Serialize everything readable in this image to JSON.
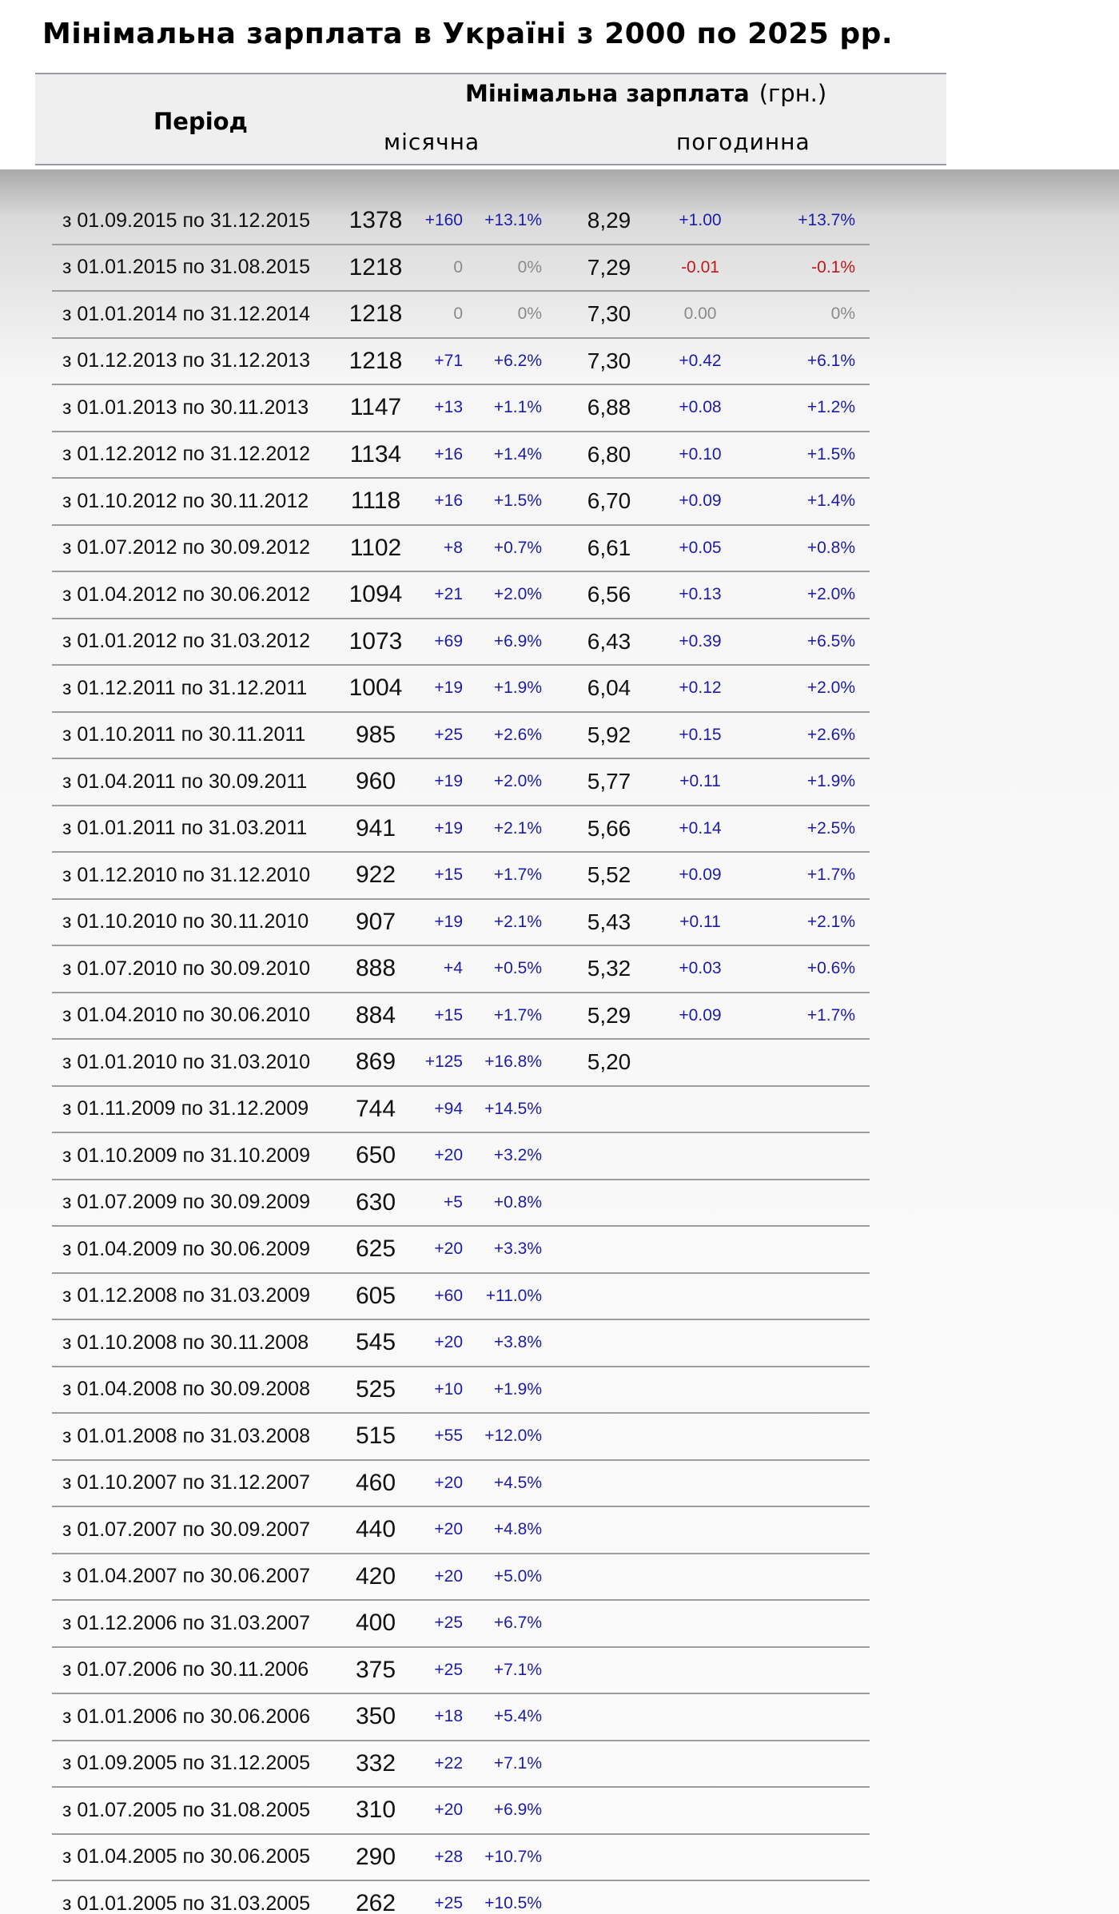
{
  "page": {
    "title": "Мінімальна зарплата в Україні з 2000 по 2025 рр."
  },
  "table": {
    "header": {
      "period": "Період",
      "group": "Мінімальна зарплата",
      "unit": "(грн.)",
      "monthly": "місячна",
      "hourly": "погодинна"
    },
    "rows": [
      {
        "period": "з 01.09.2015 по 31.12.2015",
        "monthly": "1378",
        "m_abs": "+160",
        "m_pct": "+13.1%",
        "hourly": "8,29",
        "h_abs": "+1.00",
        "h_pct": "+13.7%"
      },
      {
        "period": "з 01.01.2015 по 31.08.2015",
        "monthly": "1218",
        "m_abs": "0",
        "m_pct": "0%",
        "hourly": "7,29",
        "h_abs": "-0.01",
        "h_pct": "-0.1%"
      },
      {
        "period": "з 01.01.2014 по 31.12.2014",
        "monthly": "1218",
        "m_abs": "0",
        "m_pct": "0%",
        "hourly": "7,30",
        "h_abs": "0.00",
        "h_pct": "0%"
      },
      {
        "period": "з 01.12.2013 по 31.12.2013",
        "monthly": "1218",
        "m_abs": "+71",
        "m_pct": "+6.2%",
        "hourly": "7,30",
        "h_abs": "+0.42",
        "h_pct": "+6.1%"
      },
      {
        "period": "з 01.01.2013 по 30.11.2013",
        "monthly": "1147",
        "m_abs": "+13",
        "m_pct": "+1.1%",
        "hourly": "6,88",
        "h_abs": "+0.08",
        "h_pct": "+1.2%"
      },
      {
        "period": "з 01.12.2012 по 31.12.2012",
        "monthly": "1134",
        "m_abs": "+16",
        "m_pct": "+1.4%",
        "hourly": "6,80",
        "h_abs": "+0.10",
        "h_pct": "+1.5%"
      },
      {
        "period": "з 01.10.2012 по 30.11.2012",
        "monthly": "1118",
        "m_abs": "+16",
        "m_pct": "+1.5%",
        "hourly": "6,70",
        "h_abs": "+0.09",
        "h_pct": "+1.4%"
      },
      {
        "period": "з 01.07.2012 по 30.09.2012",
        "monthly": "1102",
        "m_abs": "+8",
        "m_pct": "+0.7%",
        "hourly": "6,61",
        "h_abs": "+0.05",
        "h_pct": "+0.8%"
      },
      {
        "period": "з 01.04.2012 по 30.06.2012",
        "monthly": "1094",
        "m_abs": "+21",
        "m_pct": "+2.0%",
        "hourly": "6,56",
        "h_abs": "+0.13",
        "h_pct": "+2.0%"
      },
      {
        "period": "з 01.01.2012 по 31.03.2012",
        "monthly": "1073",
        "m_abs": "+69",
        "m_pct": "+6.9%",
        "hourly": "6,43",
        "h_abs": "+0.39",
        "h_pct": "+6.5%"
      },
      {
        "period": "з 01.12.2011 по 31.12.2011",
        "monthly": "1004",
        "m_abs": "+19",
        "m_pct": "+1.9%",
        "hourly": "6,04",
        "h_abs": "+0.12",
        "h_pct": "+2.0%"
      },
      {
        "period": "з 01.10.2011 по 30.11.2011",
        "monthly": "985",
        "m_abs": "+25",
        "m_pct": "+2.6%",
        "hourly": "5,92",
        "h_abs": "+0.15",
        "h_pct": "+2.6%"
      },
      {
        "period": "з 01.04.2011 по 30.09.2011",
        "monthly": "960",
        "m_abs": "+19",
        "m_pct": "+2.0%",
        "hourly": "5,77",
        "h_abs": "+0.11",
        "h_pct": "+1.9%"
      },
      {
        "period": "з 01.01.2011 по 31.03.2011",
        "monthly": "941",
        "m_abs": "+19",
        "m_pct": "+2.1%",
        "hourly": "5,66",
        "h_abs": "+0.14",
        "h_pct": "+2.5%"
      },
      {
        "period": "з 01.12.2010 по 31.12.2010",
        "monthly": "922",
        "m_abs": "+15",
        "m_pct": "+1.7%",
        "hourly": "5,52",
        "h_abs": "+0.09",
        "h_pct": "+1.7%"
      },
      {
        "period": "з 01.10.2010 по 30.11.2010",
        "monthly": "907",
        "m_abs": "+19",
        "m_pct": "+2.1%",
        "hourly": "5,43",
        "h_abs": "+0.11",
        "h_pct": "+2.1%"
      },
      {
        "period": "з 01.07.2010 по 30.09.2010",
        "monthly": "888",
        "m_abs": "+4",
        "m_pct": "+0.5%",
        "hourly": "5,32",
        "h_abs": "+0.03",
        "h_pct": "+0.6%"
      },
      {
        "period": "з 01.04.2010 по 30.06.2010",
        "monthly": "884",
        "m_abs": "+15",
        "m_pct": "+1.7%",
        "hourly": "5,29",
        "h_abs": "+0.09",
        "h_pct": "+1.7%"
      },
      {
        "period": "з 01.01.2010 по 31.03.2010",
        "monthly": "869",
        "m_abs": "+125",
        "m_pct": "+16.8%",
        "hourly": "5,20",
        "h_abs": "",
        "h_pct": ""
      },
      {
        "period": "з 01.11.2009 по 31.12.2009",
        "monthly": "744",
        "m_abs": "+94",
        "m_pct": "+14.5%",
        "hourly": "",
        "h_abs": "",
        "h_pct": ""
      },
      {
        "period": "з 01.10.2009 по 31.10.2009",
        "monthly": "650",
        "m_abs": "+20",
        "m_pct": "+3.2%",
        "hourly": "",
        "h_abs": "",
        "h_pct": ""
      },
      {
        "period": "з 01.07.2009 по 30.09.2009",
        "monthly": "630",
        "m_abs": "+5",
        "m_pct": "+0.8%",
        "hourly": "",
        "h_abs": "",
        "h_pct": ""
      },
      {
        "period": "з 01.04.2009 по 30.06.2009",
        "monthly": "625",
        "m_abs": "+20",
        "m_pct": "+3.3%",
        "hourly": "",
        "h_abs": "",
        "h_pct": ""
      },
      {
        "period": "з 01.12.2008 по 31.03.2009",
        "monthly": "605",
        "m_abs": "+60",
        "m_pct": "+11.0%",
        "hourly": "",
        "h_abs": "",
        "h_pct": ""
      },
      {
        "period": "з 01.10.2008 по 30.11.2008",
        "monthly": "545",
        "m_abs": "+20",
        "m_pct": "+3.8%",
        "hourly": "",
        "h_abs": "",
        "h_pct": ""
      },
      {
        "period": "з 01.04.2008 по 30.09.2008",
        "monthly": "525",
        "m_abs": "+10",
        "m_pct": "+1.9%",
        "hourly": "",
        "h_abs": "",
        "h_pct": ""
      },
      {
        "period": "з 01.01.2008 по 31.03.2008",
        "monthly": "515",
        "m_abs": "+55",
        "m_pct": "+12.0%",
        "hourly": "",
        "h_abs": "",
        "h_pct": ""
      },
      {
        "period": "з 01.10.2007 по 31.12.2007",
        "monthly": "460",
        "m_abs": "+20",
        "m_pct": "+4.5%",
        "hourly": "",
        "h_abs": "",
        "h_pct": ""
      },
      {
        "period": "з 01.07.2007 по 30.09.2007",
        "monthly": "440",
        "m_abs": "+20",
        "m_pct": "+4.8%",
        "hourly": "",
        "h_abs": "",
        "h_pct": ""
      },
      {
        "period": "з 01.04.2007 по 30.06.2007",
        "monthly": "420",
        "m_abs": "+20",
        "m_pct": "+5.0%",
        "hourly": "",
        "h_abs": "",
        "h_pct": ""
      },
      {
        "period": "з 01.12.2006 по 31.03.2007",
        "monthly": "400",
        "m_abs": "+25",
        "m_pct": "+6.7%",
        "hourly": "",
        "h_abs": "",
        "h_pct": ""
      },
      {
        "period": "з 01.07.2006 по 30.11.2006",
        "monthly": "375",
        "m_abs": "+25",
        "m_pct": "+7.1%",
        "hourly": "",
        "h_abs": "",
        "h_pct": ""
      },
      {
        "period": "з 01.01.2006 по 30.06.2006",
        "monthly": "350",
        "m_abs": "+18",
        "m_pct": "+5.4%",
        "hourly": "",
        "h_abs": "",
        "h_pct": ""
      },
      {
        "period": "з 01.09.2005 по 31.12.2005",
        "monthly": "332",
        "m_abs": "+22",
        "m_pct": "+7.1%",
        "hourly": "",
        "h_abs": "",
        "h_pct": ""
      },
      {
        "period": "з 01.07.2005 по 31.08.2005",
        "monthly": "310",
        "m_abs": "+20",
        "m_pct": "+6.9%",
        "hourly": "",
        "h_abs": "",
        "h_pct": ""
      },
      {
        "period": "з 01.04.2005 по 30.06.2005",
        "monthly": "290",
        "m_abs": "+28",
        "m_pct": "+10.7%",
        "hourly": "",
        "h_abs": "",
        "h_pct": ""
      },
      {
        "period": "з 01.01.2005 по 31.03.2005",
        "monthly": "262",
        "m_abs": "+25",
        "m_pct": "+10.5%",
        "hourly": "",
        "h_abs": "",
        "h_pct": ""
      }
    ]
  },
  "colors": {
    "positive": "#1c1ca8",
    "negative": "#c01818",
    "zero": "#8a8a8a",
    "header_bg": "#efefef",
    "row_border": "#9c9c9c"
  }
}
